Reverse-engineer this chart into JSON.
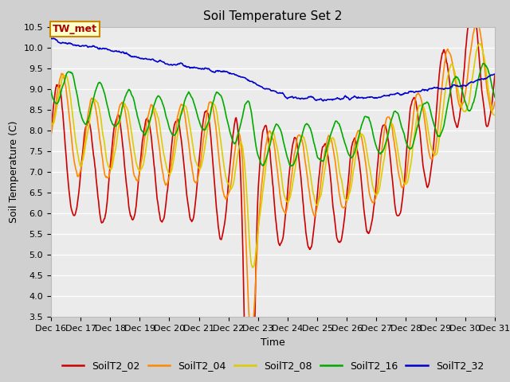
{
  "title": "Soil Temperature Set 2",
  "xlabel": "Time",
  "ylabel": "Soil Temperature (C)",
  "ylim": [
    3.5,
    10.5
  ],
  "yticks": [
    3.5,
    4.0,
    4.5,
    5.0,
    5.5,
    6.0,
    6.5,
    7.0,
    7.5,
    8.0,
    8.5,
    9.0,
    9.5,
    10.0,
    10.5
  ],
  "xlim_start": 16,
  "xlim_end": 31,
  "xtick_labels": [
    "Dec 16",
    "Dec 17",
    "Dec 18",
    "Dec 19",
    "Dec 20",
    "Dec 21",
    "Dec 22",
    "Dec 23",
    "Dec 24",
    "Dec 25",
    "Dec 26",
    "Dec 27",
    "Dec 28",
    "Dec 29",
    "Dec 30",
    "Dec 31"
  ],
  "series_colors": {
    "SoilT2_02": "#cc0000",
    "SoilT2_04": "#ff8800",
    "SoilT2_08": "#ddcc00",
    "SoilT2_16": "#00aa00",
    "SoilT2_32": "#0000cc"
  },
  "annotation_text": "TW_met",
  "annotation_facecolor": "#ffffcc",
  "annotation_edgecolor": "#cc8800",
  "annotation_textcolor": "#aa0000",
  "plot_bg_color": "#ebebeb",
  "fig_bg_color": "#d0d0d0",
  "title_fontsize": 11,
  "axis_label_fontsize": 9,
  "tick_fontsize": 8,
  "legend_fontsize": 9,
  "line_width": 1.2
}
